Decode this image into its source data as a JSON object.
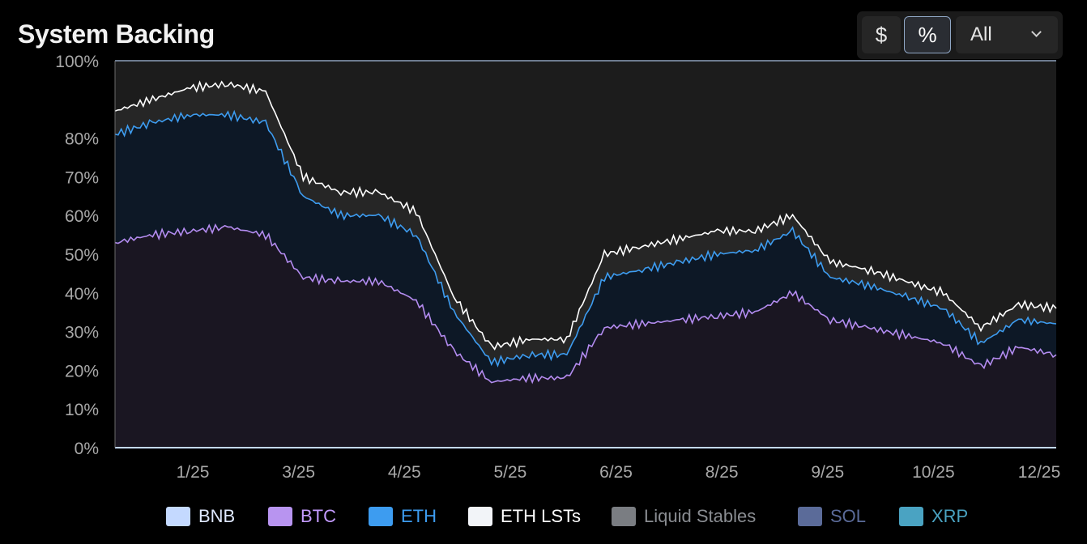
{
  "title": "System Backing",
  "controls": {
    "dollar_label": "$",
    "percent_label": "%",
    "range_value": "All"
  },
  "colors": {
    "background": "#000000",
    "plot_background": "#181818",
    "grid": "#3a3a3a",
    "axis_text": "#a8a8a8",
    "btc_line": "#b48cf0",
    "eth_line": "#3d9cf0",
    "ethlst_line": "#ffffff"
  },
  "legend": [
    {
      "label": "BNB",
      "color": "#c4d9ff",
      "text_color": "#dfe8ff"
    },
    {
      "label": "BTC",
      "color": "#b894f0",
      "text_color": "#c49bff"
    },
    {
      "label": "ETH",
      "color": "#3d9cf0",
      "text_color": "#3d9cf0"
    },
    {
      "label": "ETH LSTs",
      "color": "#f2f4f8",
      "text_color": "#ffffff"
    },
    {
      "label": "Liquid Stables",
      "color": "#7a7d82",
      "text_color": "#8a8d92"
    },
    {
      "label": "SOL",
      "color": "#5b6b99",
      "text_color": "#5b6b99"
    },
    {
      "label": "XRP",
      "color": "#4aa3c2",
      "text_color": "#4aa3c2"
    }
  ],
  "chart_data": {
    "type": "area",
    "stacked": true,
    "y_unit": "%",
    "ylim": [
      0,
      100
    ],
    "y_ticks": [
      "0%",
      "10%",
      "20%",
      "30%",
      "40%",
      "50%",
      "60%",
      "70%",
      "80%",
      "100%"
    ],
    "x_ticks": [
      "1/25",
      "3/25",
      "4/25",
      "5/25",
      "6/25",
      "8/25",
      "9/25",
      "10/25",
      "12/25"
    ],
    "grid": true,
    "legend_position": "bottom",
    "x": [
      "2024-11",
      "2024-12",
      "2024-12-20",
      "2025-01",
      "2025-01-15",
      "2025-02",
      "2025-02-15",
      "2025-03",
      "2025-03-15",
      "2025-04",
      "2025-04-15",
      "2025-05",
      "2025-05-15",
      "2025-06",
      "2025-06-15",
      "2025-07",
      "2025-07-15",
      "2025-08",
      "2025-08-15",
      "2025-09",
      "2025-09-15",
      "2025-10",
      "2025-10-15",
      "2025-11",
      "2025-11-15",
      "2025-12"
    ],
    "series": [
      {
        "name": "BTC",
        "values": [
          53,
          55,
          56,
          57,
          55,
          44,
          43,
          43,
          38,
          25,
          17,
          18,
          18,
          31,
          32,
          33,
          34,
          35,
          40,
          33,
          31,
          29,
          27,
          21,
          26,
          24
        ]
      },
      {
        "name": "ETH",
        "values": [
          81,
          84,
          86,
          86,
          84,
          65,
          60,
          60,
          55,
          35,
          22,
          24,
          24,
          44,
          46,
          48,
          50,
          51,
          56,
          44,
          42,
          39,
          36,
          27,
          33,
          32
        ]
      },
      {
        "name": "ETH LSTs",
        "values": [
          87,
          90,
          93,
          94,
          92,
          70,
          66,
          66,
          61,
          39,
          26,
          28,
          28,
          50,
          52,
          54,
          56,
          56,
          60,
          48,
          46,
          43,
          40,
          31,
          37,
          36
        ]
      },
      {
        "name": "Liquid Stables",
        "values": [
          100,
          100,
          100,
          100,
          100,
          100,
          100,
          100,
          100,
          100,
          100,
          100,
          100,
          100,
          100,
          100,
          100,
          100,
          100,
          100,
          100,
          100,
          100,
          100,
          100,
          100
        ]
      }
    ]
  }
}
